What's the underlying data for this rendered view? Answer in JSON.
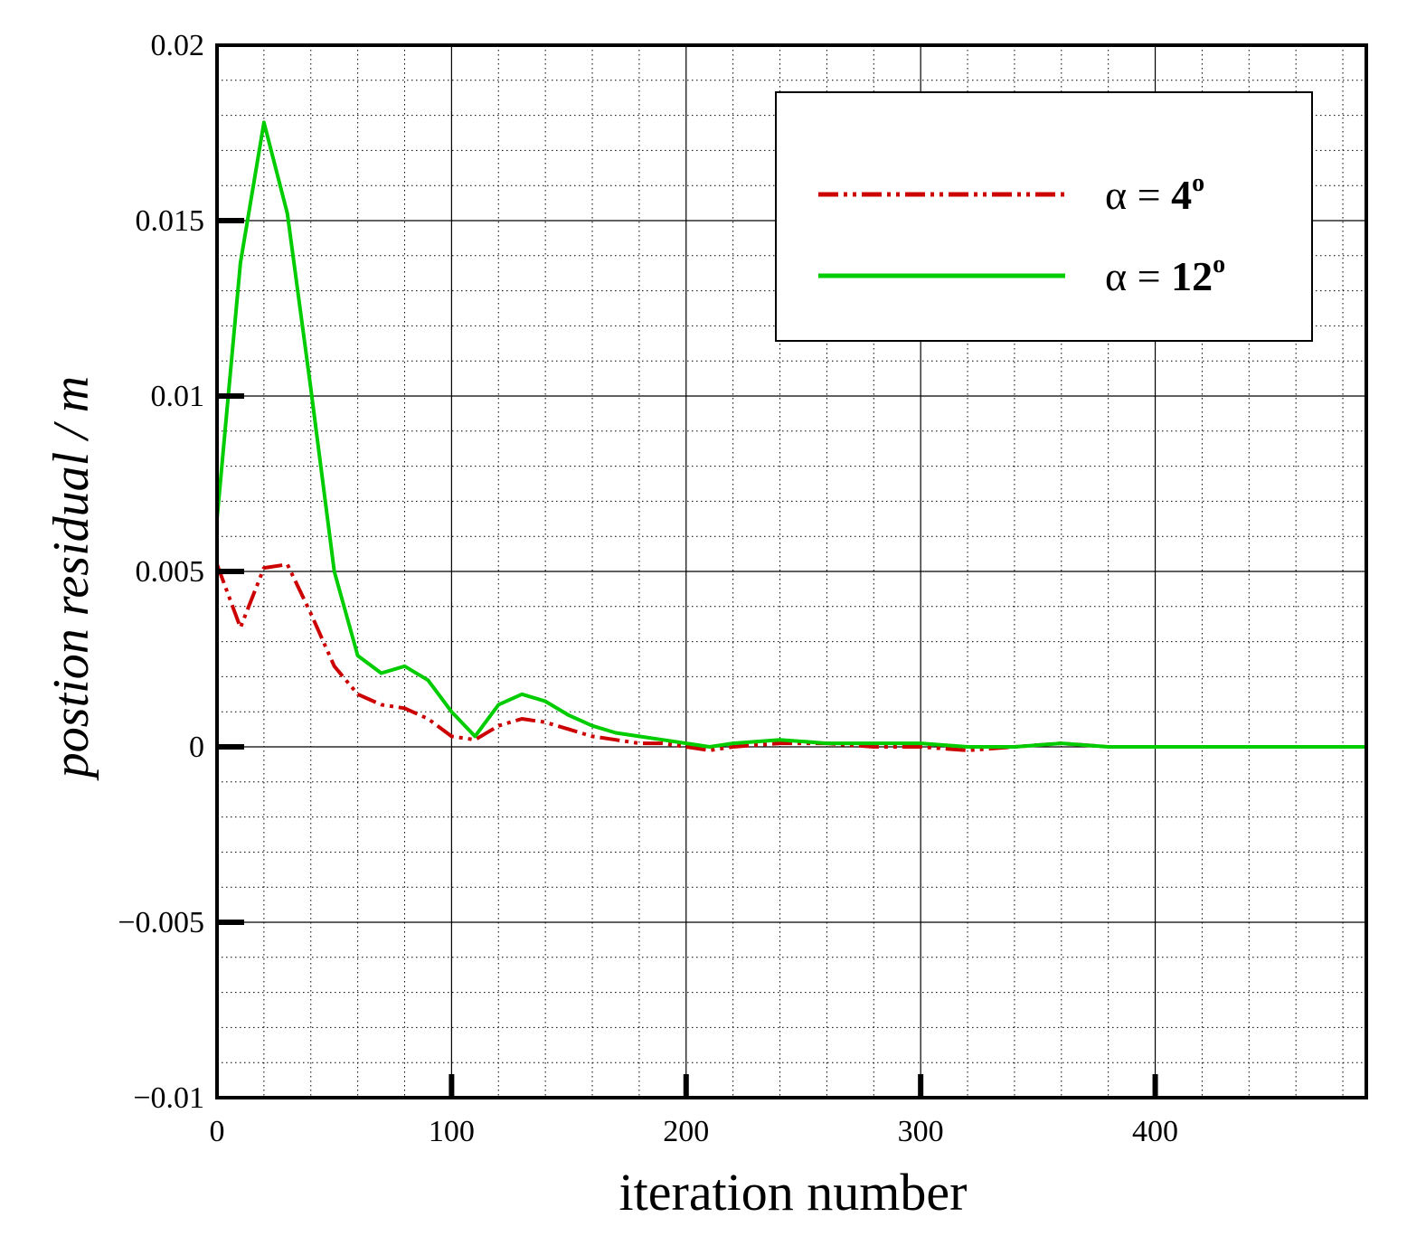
{
  "chart_data": {
    "type": "line",
    "xlabel": "iteration number",
    "ylabel": "postion residual / m",
    "xlim": [
      0,
      490
    ],
    "ylim": [
      -0.01,
      0.02
    ],
    "x_ticks": [
      0,
      100,
      200,
      300,
      400
    ],
    "y_ticks": [
      -0.01,
      -0.005,
      0,
      0.005,
      0.01,
      0.015,
      0.02
    ],
    "x_tick_labels": [
      "0",
      "100",
      "200",
      "300",
      "400"
    ],
    "y_tick_labels": [
      "−0.01",
      "−0.005",
      "0",
      "0.005",
      "0.01",
      "0.015",
      "0.02"
    ],
    "grid": {
      "major": true,
      "minor": true,
      "x_minor_step": 20,
      "y_minor_step": 0.001
    },
    "legend": {
      "position": "top-right"
    },
    "series": [
      {
        "name": "α = 4",
        "legend_symbol": "α",
        "legend_eq": " = ",
        "legend_num": "4",
        "legend_sup": "o",
        "color": "#cc0000",
        "style": "dash-dot-dot",
        "x": [
          0,
          10,
          20,
          30,
          40,
          50,
          60,
          70,
          80,
          90,
          100,
          110,
          120,
          130,
          140,
          150,
          160,
          170,
          180,
          190,
          200,
          210,
          220,
          240,
          260,
          280,
          300,
          320,
          340,
          360,
          380,
          400,
          420,
          440,
          460,
          490
        ],
        "y": [
          0.0052,
          0.0034,
          0.0051,
          0.0052,
          0.0038,
          0.0023,
          0.0015,
          0.0012,
          0.0011,
          0.0008,
          0.0003,
          0.0002,
          0.0006,
          0.0008,
          0.0007,
          0.0005,
          0.0003,
          0.0002,
          0.0001,
          0.0001,
          0.0,
          -0.0001,
          0.0,
          0.0001,
          0.0001,
          0.0,
          0.0,
          -0.0001,
          0.0,
          0.0001,
          0.0,
          0.0,
          0.0,
          0.0,
          0.0,
          0.0
        ]
      },
      {
        "name": "α = 12",
        "legend_symbol": "α",
        "legend_eq": " = ",
        "legend_num": "12",
        "legend_sup": "o",
        "color": "#00cc00",
        "style": "solid",
        "x": [
          0,
          10,
          20,
          30,
          40,
          50,
          60,
          70,
          80,
          90,
          100,
          110,
          120,
          130,
          140,
          150,
          160,
          170,
          180,
          190,
          200,
          210,
          220,
          240,
          260,
          280,
          300,
          320,
          340,
          360,
          380,
          400,
          420,
          440,
          460,
          490
        ],
        "y": [
          0.0065,
          0.0138,
          0.0178,
          0.0152,
          0.0102,
          0.005,
          0.0026,
          0.0021,
          0.0023,
          0.0019,
          0.001,
          0.0003,
          0.0012,
          0.0015,
          0.0013,
          0.0009,
          0.0006,
          0.0004,
          0.0003,
          0.0002,
          0.0001,
          0.0,
          0.0001,
          0.0002,
          0.0001,
          0.0001,
          0.0001,
          0.0,
          0.0,
          0.0001,
          0.0,
          0.0,
          0.0,
          0.0,
          0.0,
          0.0
        ]
      }
    ]
  }
}
